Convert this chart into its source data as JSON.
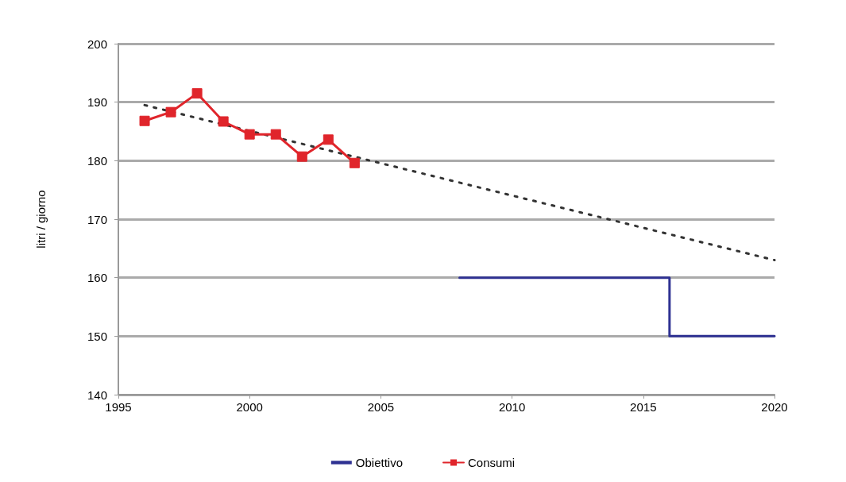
{
  "chart_data": {
    "type": "line",
    "ylabel": "litri / giorno",
    "xlim": [
      1995,
      2020
    ],
    "xticks": [
      1995,
      2000,
      2005,
      2010,
      2015,
      2020
    ],
    "ylim": [
      140,
      200
    ],
    "yticks": [
      140,
      150,
      160,
      170,
      180,
      190,
      200
    ],
    "grid": "y",
    "legend": "bottom",
    "series": [
      {
        "name": "Obiettivo",
        "type": "step",
        "color": "#2e3192",
        "marker": "none",
        "x": [
          2008,
          2016,
          2020
        ],
        "values": [
          160,
          150,
          150
        ]
      },
      {
        "name": "Consumi",
        "color": "#e0252b",
        "marker": "square",
        "x": [
          1996,
          1997,
          1998,
          1999,
          2000,
          2001,
          2002,
          2003,
          2004
        ],
        "values": [
          186.8,
          188.3,
          191.5,
          186.7,
          184.5,
          184.5,
          180.7,
          183.6,
          179.6
        ]
      },
      {
        "color": "#333333",
        "marker": "none",
        "line_style": "dotted",
        "x": [
          1996,
          2020
        ],
        "values": [
          189.5,
          163
        ]
      }
    ]
  }
}
